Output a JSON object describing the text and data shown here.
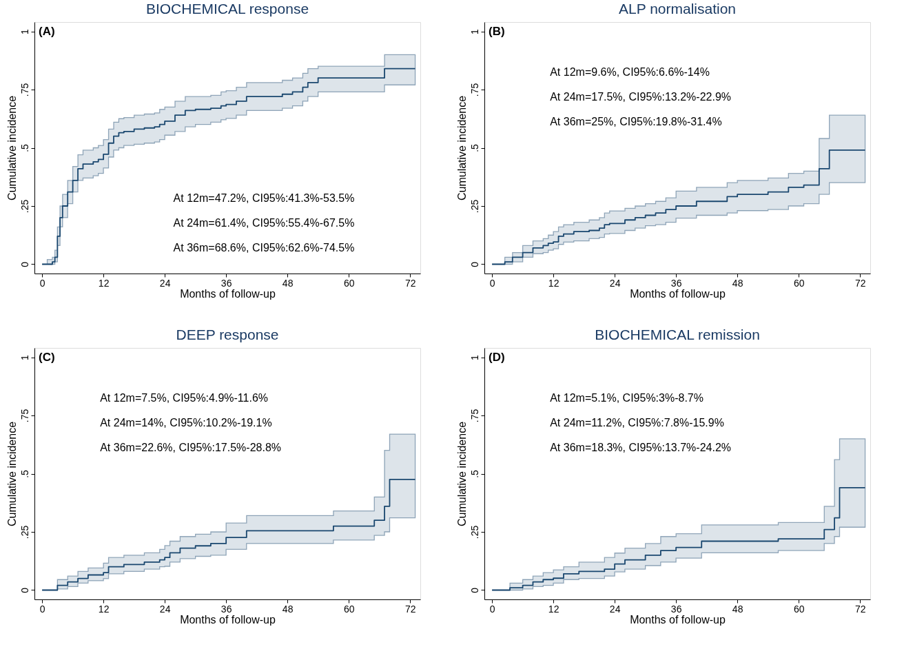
{
  "chart_data": [
    {
      "type": "step",
      "title": "BIOCHEMICAL response",
      "xlabel": "Months of follow-up",
      "ylabel": "Cumulative incidence",
      "xlim": [
        -1.5,
        74
      ],
      "xticks": [
        0,
        12,
        24,
        36,
        48,
        60,
        72
      ],
      "ylim": [
        -0.04,
        1.04
      ],
      "yticks": [
        0,
        {
          "value": 0.25,
          "label": ".25"
        },
        {
          "value": 0.5,
          "label": ".5"
        },
        {
          "value": 0.75,
          "label": ".75"
        },
        1
      ],
      "grid": false,
      "annotations": [
        "(A)",
        "At 12m=47.2%, CI95%:41.3%-53.5%",
        "At 24m=61.4%, CI95%:55.4%-67.5%",
        "At 36m=68.6%, CI95%:62.6%-74.5%"
      ],
      "x": [
        0,
        1,
        2,
        2.5,
        3,
        3.5,
        4,
        5,
        6,
        7,
        8,
        10,
        11,
        12,
        13,
        14,
        15,
        16,
        18,
        20,
        22,
        23,
        24,
        26,
        28,
        30,
        33,
        35,
        36,
        38,
        40,
        45,
        47,
        49,
        51,
        52,
        54,
        66,
        67,
        73
      ],
      "series": [
        {
          "color": "#1a476f",
          "values": [
            0,
            0,
            0.01,
            0.03,
            0.12,
            0.2,
            0.25,
            0.31,
            0.36,
            0.41,
            0.43,
            0.44,
            0.45,
            0.472,
            0.52,
            0.55,
            0.565,
            0.57,
            0.58,
            0.585,
            0.59,
            0.6,
            0.614,
            0.64,
            0.66,
            0.665,
            0.67,
            0.68,
            0.686,
            0.7,
            0.72,
            0.72,
            0.73,
            0.74,
            0.76,
            0.78,
            0.8,
            0.8,
            0.84,
            0.84
          ],
          "lower": [
            0,
            0,
            0,
            0.01,
            0.08,
            0.16,
            0.2,
            0.26,
            0.31,
            0.36,
            0.37,
            0.38,
            0.39,
            0.413,
            0.46,
            0.49,
            0.5,
            0.51,
            0.515,
            0.52,
            0.525,
            0.535,
            0.554,
            0.57,
            0.59,
            0.6,
            0.61,
            0.62,
            0.626,
            0.64,
            0.66,
            0.66,
            0.67,
            0.68,
            0.7,
            0.72,
            0.74,
            0.74,
            0.77,
            0.77
          ],
          "upper": [
            0,
            0.02,
            0.03,
            0.06,
            0.16,
            0.25,
            0.3,
            0.36,
            0.42,
            0.47,
            0.49,
            0.5,
            0.51,
            0.535,
            0.58,
            0.61,
            0.625,
            0.63,
            0.64,
            0.645,
            0.65,
            0.665,
            0.675,
            0.7,
            0.72,
            0.72,
            0.725,
            0.74,
            0.745,
            0.76,
            0.78,
            0.78,
            0.79,
            0.8,
            0.82,
            0.84,
            0.85,
            0.85,
            0.9,
            0.9
          ]
        }
      ]
    },
    {
      "type": "step",
      "title": "ALP normalisation",
      "xlabel": "Months of follow-up",
      "ylabel": "Cumulative incidence",
      "xlim": [
        -1.5,
        74
      ],
      "xticks": [
        0,
        12,
        24,
        36,
        48,
        60,
        72
      ],
      "ylim": [
        -0.04,
        1.04
      ],
      "yticks": [
        0,
        {
          "value": 0.25,
          "label": ".25"
        },
        {
          "value": 0.5,
          "label": ".5"
        },
        {
          "value": 0.75,
          "label": ".75"
        },
        1
      ],
      "grid": false,
      "annotations": [
        "(B)",
        "At 12m=9.6%,  CI95%:6.6%-14%",
        "At 24m=17.5%, CI95%:13.2%-22.9%",
        "At 36m=25%, CI95%:19.8%-31.4%"
      ],
      "x": [
        0,
        2,
        2.5,
        4,
        6,
        8,
        10,
        11,
        12,
        13,
        14,
        16,
        19,
        21,
        22,
        23,
        26,
        28,
        30,
        32,
        34,
        36,
        40,
        44,
        46,
        48,
        54,
        58,
        61,
        64,
        66,
        73
      ],
      "series": [
        {
          "color": "#1a476f",
          "values": [
            0,
            0,
            0.01,
            0.03,
            0.05,
            0.07,
            0.08,
            0.09,
            0.096,
            0.12,
            0.13,
            0.14,
            0.145,
            0.155,
            0.17,
            0.175,
            0.19,
            0.2,
            0.21,
            0.22,
            0.235,
            0.25,
            0.27,
            0.27,
            0.29,
            0.3,
            0.31,
            0.33,
            0.34,
            0.41,
            0.49,
            0.49
          ],
          "lower": [
            0,
            0,
            0,
            0.01,
            0.03,
            0.045,
            0.05,
            0.06,
            0.066,
            0.085,
            0.095,
            0.1,
            0.11,
            0.115,
            0.13,
            0.132,
            0.145,
            0.155,
            0.165,
            0.17,
            0.18,
            0.198,
            0.21,
            0.21,
            0.22,
            0.23,
            0.235,
            0.25,
            0.26,
            0.3,
            0.35,
            0.35
          ],
          "upper": [
            0,
            0,
            0.03,
            0.05,
            0.08,
            0.1,
            0.11,
            0.125,
            0.14,
            0.16,
            0.17,
            0.18,
            0.19,
            0.2,
            0.22,
            0.229,
            0.24,
            0.25,
            0.26,
            0.27,
            0.285,
            0.314,
            0.33,
            0.33,
            0.35,
            0.36,
            0.37,
            0.39,
            0.4,
            0.54,
            0.64,
            0.64
          ]
        }
      ]
    },
    {
      "type": "step",
      "title": "DEEP response",
      "xlabel": "Months of follow-up",
      "ylabel": "Cumulative incidence",
      "xlim": [
        -1.5,
        74
      ],
      "xticks": [
        0,
        12,
        24,
        36,
        48,
        60,
        72
      ],
      "ylim": [
        -0.04,
        1.04
      ],
      "yticks": [
        0,
        {
          "value": 0.25,
          "label": ".25"
        },
        {
          "value": 0.5,
          "label": ".5"
        },
        {
          "value": 0.75,
          "label": ".75"
        },
        1
      ],
      "grid": false,
      "annotations": [
        "(C)",
        "At 12m=7.5%,  CI95%:4.9%-11.6%",
        "At 24m=14%,   CI95%:10.2%-19.1%",
        "At 36m=22.6%, CI95%:17.5%-28.8%"
      ],
      "x": [
        0,
        2.5,
        3,
        5,
        7,
        9,
        12,
        13,
        16,
        20,
        23,
        24,
        25,
        27,
        30,
        33,
        36,
        40,
        56,
        57,
        64,
        65,
        67,
        68,
        73
      ],
      "series": [
        {
          "color": "#1a476f",
          "values": [
            0,
            0,
            0.02,
            0.035,
            0.05,
            0.065,
            0.075,
            0.1,
            0.11,
            0.12,
            0.13,
            0.14,
            0.16,
            0.18,
            0.19,
            0.2,
            0.226,
            0.255,
            0.255,
            0.275,
            0.275,
            0.3,
            0.36,
            0.475,
            0.475
          ],
          "lower": [
            0,
            0,
            0.005,
            0.015,
            0.03,
            0.04,
            0.049,
            0.07,
            0.08,
            0.09,
            0.1,
            0.102,
            0.12,
            0.135,
            0.145,
            0.15,
            0.175,
            0.2,
            0.2,
            0.215,
            0.215,
            0.235,
            0.25,
            0.31,
            0.31
          ],
          "upper": [
            0,
            0,
            0.045,
            0.06,
            0.08,
            0.095,
            0.116,
            0.14,
            0.15,
            0.16,
            0.175,
            0.191,
            0.21,
            0.23,
            0.24,
            0.25,
            0.288,
            0.32,
            0.32,
            0.34,
            0.34,
            0.4,
            0.6,
            0.67,
            0.67
          ]
        }
      ]
    },
    {
      "type": "step",
      "title": "BIOCHEMICAL remission",
      "xlabel": "Months of follow-up",
      "ylabel": "Cumulative incidence",
      "xlim": [
        -1.5,
        74
      ],
      "xticks": [
        0,
        12,
        24,
        36,
        48,
        60,
        72
      ],
      "ylim": [
        -0.04,
        1.04
      ],
      "yticks": [
        0,
        {
          "value": 0.25,
          "label": ".25"
        },
        {
          "value": 0.5,
          "label": ".5"
        },
        {
          "value": 0.75,
          "label": ".75"
        },
        1
      ],
      "grid": false,
      "annotations": [
        "(D)",
        "At 12m=5.1%,  CI95%:3%-8.7%",
        "At 24m=11.2%,  CI95%:7.8%-15.9%",
        "At 36m=18.3%, CI95%:13.7%-24.2%"
      ],
      "x": [
        0,
        3,
        3.5,
        6,
        8,
        10,
        12,
        14,
        17,
        22,
        24,
        26,
        30,
        33,
        36,
        41,
        56,
        64,
        65,
        67,
        68,
        73
      ],
      "series": [
        {
          "color": "#1a476f",
          "values": [
            0,
            0,
            0.01,
            0.02,
            0.035,
            0.045,
            0.051,
            0.07,
            0.08,
            0.09,
            0.112,
            0.13,
            0.15,
            0.17,
            0.183,
            0.21,
            0.22,
            0.22,
            0.26,
            0.31,
            0.44,
            0.44
          ],
          "lower": [
            0,
            0,
            0,
            0.005,
            0.015,
            0.02,
            0.03,
            0.045,
            0.05,
            0.06,
            0.078,
            0.09,
            0.105,
            0.12,
            0.137,
            0.16,
            0.17,
            0.17,
            0.2,
            0.23,
            0.27,
            0.27
          ],
          "upper": [
            0,
            0,
            0.03,
            0.045,
            0.06,
            0.075,
            0.087,
            0.1,
            0.12,
            0.14,
            0.159,
            0.18,
            0.2,
            0.23,
            0.242,
            0.28,
            0.29,
            0.29,
            0.36,
            0.56,
            0.65,
            0.65
          ]
        }
      ]
    }
  ]
}
